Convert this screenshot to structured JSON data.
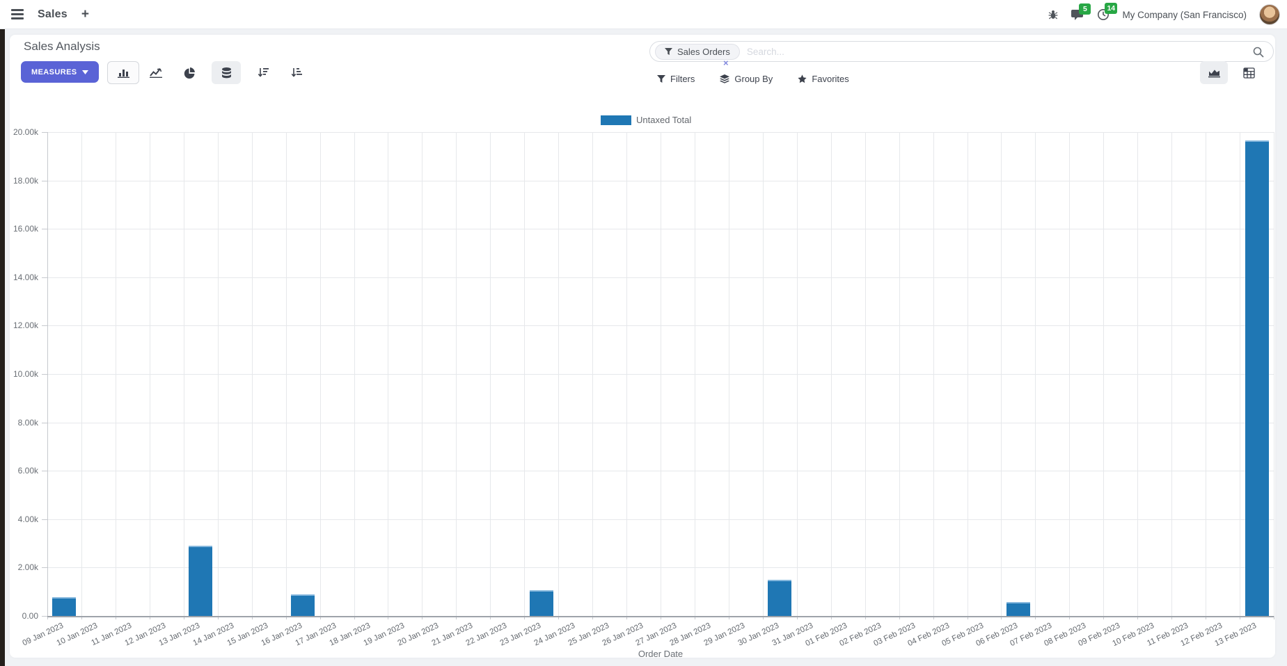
{
  "navbar": {
    "app_name": "Sales",
    "new_tab_label": "+",
    "messages_badge": "5",
    "activities_badge": "14",
    "company": "My Company (San Francisco)"
  },
  "control_panel": {
    "title": "Sales Analysis",
    "measures_label": "MEASURES",
    "search": {
      "facet_label": "Sales Orders",
      "facet_remove": "×",
      "placeholder": "Search..."
    },
    "filters_label": "Filters",
    "group_by_label": "Group By",
    "favorites_label": "Favorites"
  },
  "colors": {
    "accent": "#5a63d6",
    "badge_green": "#28a745",
    "bar_color": "#1f77b4",
    "bar_border_color": "#85b7dd"
  },
  "chart_data": {
    "type": "bar",
    "title": "",
    "legend_position": "top-center",
    "grid": true,
    "xlabel": "Order Date",
    "ylabel": "",
    "ylim": [
      0,
      20000
    ],
    "y_ticks": [
      "20.00k",
      "18.00k",
      "16.00k",
      "14.00k",
      "12.00k",
      "10.00k",
      "8.00k",
      "6.00k",
      "4.00k",
      "2.00k",
      "0.00"
    ],
    "categories": [
      "09 Jan 2023",
      "10 Jan 2023",
      "11 Jan 2023",
      "12 Jan 2023",
      "13 Jan 2023",
      "14 Jan 2023",
      "15 Jan 2023",
      "16 Jan 2023",
      "17 Jan 2023",
      "18 Jan 2023",
      "19 Jan 2023",
      "20 Jan 2023",
      "21 Jan 2023",
      "22 Jan 2023",
      "23 Jan 2023",
      "24 Jan 2023",
      "25 Jan 2023",
      "26 Jan 2023",
      "27 Jan 2023",
      "28 Jan 2023",
      "29 Jan 2023",
      "30 Jan 2023",
      "31 Jan 2023",
      "01 Feb 2023",
      "02 Feb 2023",
      "03 Feb 2023",
      "04 Feb 2023",
      "05 Feb 2023",
      "06 Feb 2023",
      "07 Feb 2023",
      "08 Feb 2023",
      "09 Feb 2023",
      "10 Feb 2023",
      "11 Feb 2023",
      "12 Feb 2023",
      "13 Feb 2023"
    ],
    "series": [
      {
        "name": "Untaxed Total",
        "values": [
          780,
          0,
          0,
          0,
          2900,
          0,
          0,
          890,
          0,
          0,
          0,
          0,
          0,
          0,
          1060,
          0,
          0,
          0,
          0,
          0,
          0,
          1490,
          0,
          0,
          0,
          0,
          0,
          0,
          575,
          0,
          0,
          0,
          0,
          0,
          0,
          19650
        ]
      }
    ]
  }
}
